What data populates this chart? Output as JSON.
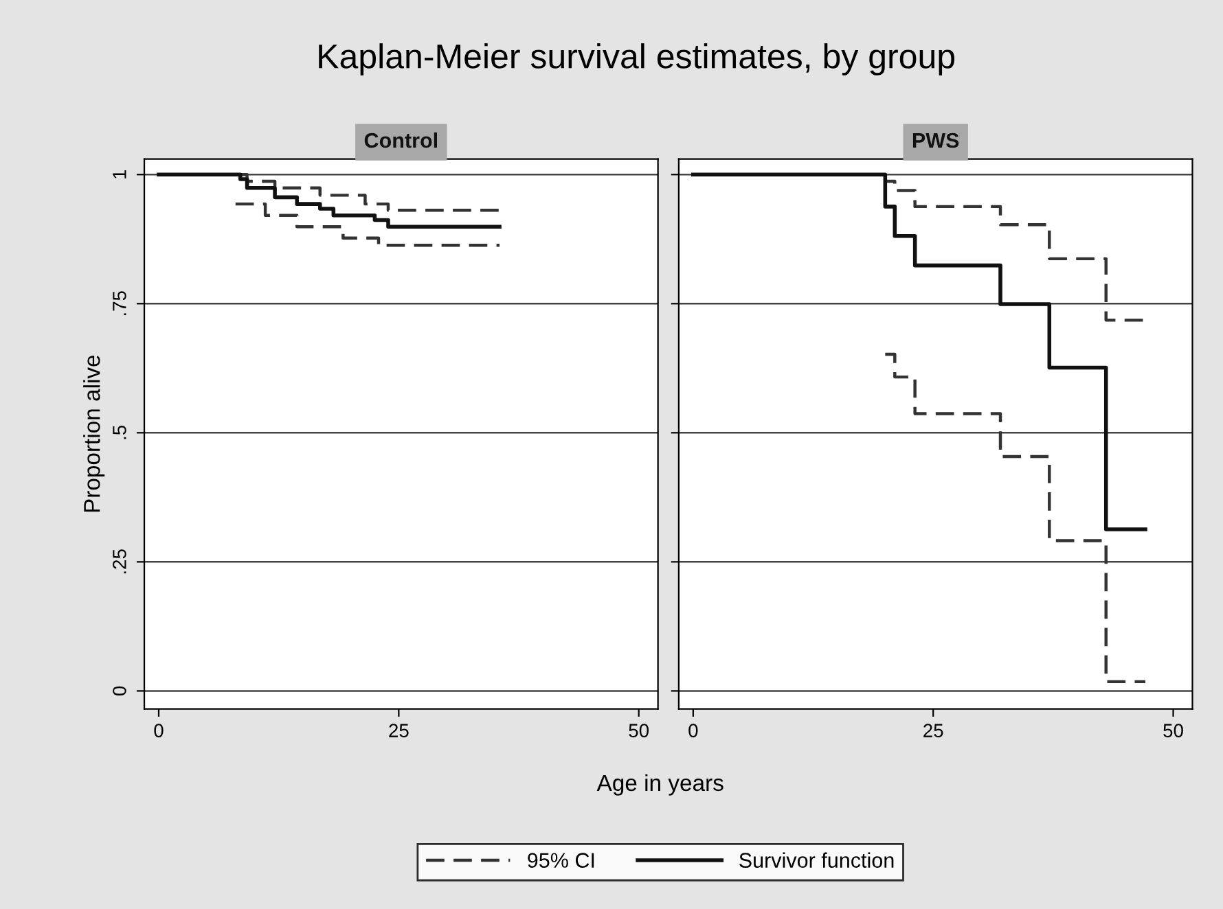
{
  "chart_data": [
    {
      "type": "step",
      "title": "Kaplan-Meier survival estimates, by group",
      "subtitle": "Control",
      "xlabel": "Age in years",
      "ylabel": "Proportion alive",
      "xlim": [
        -1.5,
        52
      ],
      "xticks": [
        0,
        25,
        50
      ],
      "ylim": [
        -0.035,
        1.03
      ],
      "yticks": [
        0,
        {
          "value": 0.25,
          "label": ".25"
        },
        {
          "value": 0.5,
          "label": ".5"
        },
        {
          "value": 0.75,
          "label": ".75"
        },
        1
      ],
      "grid": "y",
      "legend": "bottom",
      "series": [
        {
          "name": "95% CI",
          "color": "#333333",
          "line_style": "dashed",
          "x": [
            0,
            7.8,
            9.2,
            12.1,
            16.8,
            21.5,
            23.9,
            35.5
          ],
          "values": [
            1,
            1,
            0.987,
            0.974,
            0.96,
            0.943,
            0.931,
            0.931
          ]
        },
        {
          "color": "#333333",
          "line_style": "dashed",
          "x": [
            8.0,
            11.1,
            14.4,
            19.2,
            22.9,
            35.5
          ],
          "values": [
            0.943,
            0.921,
            0.899,
            0.877,
            0.863,
            0.863
          ]
        },
        {
          "name": "Survivor function",
          "color": "#111111",
          "line_style": "solid",
          "x": [
            0,
            7.8,
            8.5,
            9.2,
            12.1,
            14.4,
            16.8,
            18.2,
            22.5,
            23.9,
            35.5
          ],
          "values": [
            1,
            1,
            0.991,
            0.974,
            0.956,
            0.943,
            0.934,
            0.921,
            0.912,
            0.899,
            0.899
          ]
        }
      ]
    },
    {
      "type": "step",
      "subtitle": "PWS",
      "tick_labels": "x",
      "xlim": [
        -1.5,
        52
      ],
      "xticks": [
        0,
        25,
        50
      ],
      "ylim": [
        -0.035,
        1.03
      ],
      "yticks": [
        {
          "value": 0,
          "label": null
        },
        {
          "value": 0.25,
          "label": null
        },
        {
          "value": 0.5,
          "label": null
        },
        {
          "value": 0.75,
          "label": null
        },
        {
          "value": 1,
          "label": null
        }
      ],
      "grid": "y",
      "series": [
        {
          "color": "#333333",
          "line_style": "dashed",
          "x": [
            0,
            20.0,
            21.0,
            23.1,
            32.0,
            37.1,
            43.0,
            47.1
          ],
          "values": [
            1,
            0.987,
            0.969,
            0.938,
            0.903,
            0.837,
            0.718,
            0.718
          ]
        },
        {
          "color": "#333333",
          "line_style": "dashed",
          "x": [
            20.0,
            21.0,
            23.1,
            32.0,
            37.1,
            43.0,
            47.1
          ],
          "values": [
            0.652,
            0.608,
            0.537,
            0.454,
            0.291,
            0.018,
            0.018
          ]
        },
        {
          "color": "#111111",
          "line_style": "solid",
          "x": [
            0,
            20.0,
            21.0,
            23.1,
            32.0,
            37.1,
            43.0,
            47.1
          ],
          "values": [
            1,
            0.938,
            0.881,
            0.824,
            0.749,
            0.626,
            0.313,
            0.313
          ]
        }
      ]
    }
  ]
}
